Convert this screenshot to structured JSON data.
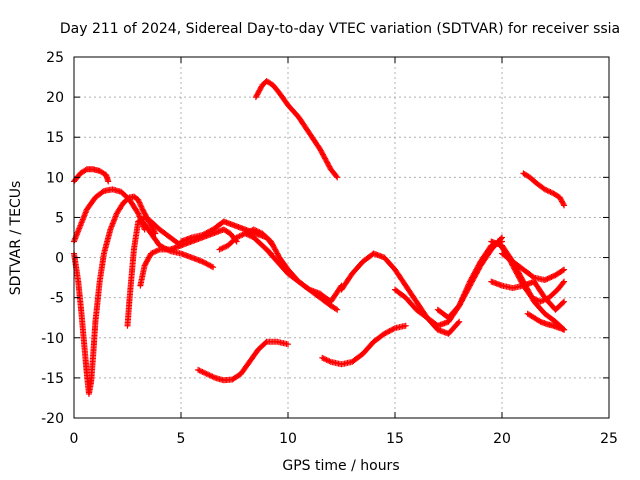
{
  "chart_data": {
    "type": "scatter",
    "title": "Day 211 of 2024, Sidereal Day-to-day VTEC variation (SDTVAR) for receiver ssia",
    "xlabel": "GPS time / hours",
    "ylabel": "SDTVAR / TECUs",
    "xlim": [
      0,
      25
    ],
    "ylim": [
      -20,
      25
    ],
    "xticks": [
      0,
      5,
      10,
      15,
      20,
      25
    ],
    "yticks": [
      -20,
      -15,
      -10,
      -5,
      0,
      5,
      10,
      15,
      20,
      25
    ],
    "grid": true,
    "marker": "+",
    "color": "#ff0000",
    "series": [
      {
        "name": "s1",
        "x": [
          0.0,
          0.3,
          0.6,
          0.9,
          1.2,
          1.5,
          1.6
        ],
        "y": [
          9.5,
          10.5,
          11.0,
          11.0,
          10.8,
          10.3,
          9.5
        ]
      },
      {
        "name": "s2",
        "x": [
          0.0,
          0.3,
          0.6,
          1.0,
          1.4,
          1.8,
          2.2,
          2.6,
          3.0,
          3.3
        ],
        "y": [
          2.0,
          4.0,
          6.0,
          7.5,
          8.3,
          8.5,
          8.2,
          7.2,
          5.5,
          3.5
        ]
      },
      {
        "name": "s3",
        "x": [
          0.0,
          0.2,
          0.35,
          0.5,
          0.6,
          0.7,
          0.8,
          0.9,
          1.0,
          1.2,
          1.4,
          1.7,
          2.0,
          2.3,
          2.6,
          2.8,
          3.0,
          3.2,
          3.5,
          3.8
        ],
        "y": [
          0.5,
          -3.0,
          -7.0,
          -11.5,
          -14.5,
          -17.0,
          -15.5,
          -12.0,
          -8.0,
          -3.0,
          0.5,
          3.5,
          5.5,
          6.8,
          7.5,
          7.6,
          7.2,
          6.0,
          4.5,
          3.0
        ]
      },
      {
        "name": "s4",
        "x": [
          2.5,
          2.6,
          2.8,
          3.0,
          3.3,
          3.6,
          4.0,
          4.5,
          5.0
        ],
        "y": [
          -8.5,
          -5.0,
          1.0,
          4.5,
          5.0,
          4.5,
          3.5,
          2.5,
          1.5
        ]
      },
      {
        "name": "s5",
        "x": [
          3.1,
          3.3,
          3.6,
          4.0,
          4.5,
          5.0,
          5.5,
          6.0,
          6.5,
          7.0,
          7.3,
          7.6
        ],
        "y": [
          -3.5,
          -1.0,
          0.5,
          1.0,
          1.0,
          1.5,
          2.0,
          2.5,
          3.0,
          3.5,
          3.0,
          2.0
        ]
      },
      {
        "name": "s6",
        "x": [
          3.2,
          3.6,
          4.0,
          4.5,
          5.0,
          5.5,
          6.0,
          6.5
        ],
        "y": [
          4.5,
          3.0,
          1.5,
          0.8,
          0.5,
          0.0,
          -0.5,
          -1.2
        ]
      },
      {
        "name": "s7",
        "x": [
          5.0,
          5.5,
          6.0,
          6.5,
          7.0,
          7.5,
          8.0,
          8.5,
          9.0,
          9.3
        ],
        "y": [
          2.0,
          2.5,
          2.8,
          3.5,
          4.5,
          4.0,
          3.5,
          3.0,
          2.5,
          1.5
        ]
      },
      {
        "name": "s8",
        "x": [
          6.8,
          7.2,
          7.6,
          8.0,
          8.4,
          8.8,
          9.2
        ],
        "y": [
          1.0,
          1.5,
          2.5,
          3.0,
          2.5,
          1.5,
          0.5
        ]
      },
      {
        "name": "s9",
        "x": [
          8.0,
          8.4,
          8.8,
          9.2,
          9.6,
          10.0,
          10.5,
          11.0,
          11.5,
          12.0,
          12.5
        ],
        "y": [
          3.0,
          3.5,
          3.0,
          2.0,
          0.0,
          -1.5,
          -3.0,
          -4.0,
          -4.5,
          -5.5,
          -3.5
        ]
      },
      {
        "name": "s10",
        "x": [
          9.0,
          9.5,
          10.0,
          10.5,
          11.0,
          11.5,
          12.0,
          12.3
        ],
        "y": [
          1.0,
          -0.5,
          -2.0,
          -3.0,
          -4.0,
          -5.0,
          -6.0,
          -6.5
        ]
      },
      {
        "name": "s11",
        "x": [
          8.5,
          8.8,
          9.0,
          9.3,
          9.6,
          10.0,
          10.5,
          11.0,
          11.5,
          12.0,
          12.3
        ],
        "y": [
          20.0,
          21.5,
          22.0,
          21.5,
          20.5,
          19.0,
          17.5,
          15.5,
          13.5,
          11.0,
          10.0
        ]
      },
      {
        "name": "s12",
        "x": [
          5.8,
          6.2,
          6.6,
          7.0,
          7.4,
          7.8,
          8.2,
          8.6,
          9.0,
          9.5,
          10.0
        ],
        "y": [
          -14.0,
          -14.5,
          -15.0,
          -15.3,
          -15.2,
          -14.5,
          -13.0,
          -11.5,
          -10.5,
          -10.5,
          -10.8
        ]
      },
      {
        "name": "s13",
        "x": [
          11.6,
          12.0,
          12.5,
          13.0,
          13.5,
          14.0,
          14.5,
          15.0,
          15.5
        ],
        "y": [
          -12.5,
          -13.0,
          -13.3,
          -13.0,
          -12.0,
          -10.5,
          -9.5,
          -8.8,
          -8.5
        ]
      },
      {
        "name": "s14",
        "x": [
          12.5,
          13.0,
          13.5,
          14.0,
          14.5,
          15.0,
          15.5,
          16.0,
          16.5,
          17.0,
          17.5,
          18.0
        ],
        "y": [
          -4.0,
          -2.0,
          -0.5,
          0.5,
          0.0,
          -1.5,
          -3.5,
          -5.5,
          -7.5,
          -9.0,
          -9.5,
          -8.0
        ]
      },
      {
        "name": "s15",
        "x": [
          15.0,
          15.5,
          16.0,
          16.5,
          17.0,
          17.5,
          18.0,
          18.5,
          19.0,
          19.5,
          20.0
        ],
        "y": [
          -4.0,
          -5.0,
          -6.5,
          -7.5,
          -8.5,
          -8.0,
          -6.0,
          -3.0,
          -0.5,
          1.5,
          2.0
        ]
      },
      {
        "name": "s16",
        "x": [
          17.0,
          17.5,
          18.0,
          18.5,
          19.0,
          19.5,
          20.0
        ],
        "y": [
          -6.5,
          -7.5,
          -6.0,
          -3.5,
          -1.0,
          1.0,
          2.5
        ]
      },
      {
        "name": "s17",
        "x": [
          19.5,
          20.0,
          20.5,
          21.0,
          21.5,
          22.0,
          22.5,
          22.9
        ],
        "y": [
          2.0,
          1.5,
          -0.5,
          -3.0,
          -5.5,
          -7.0,
          -8.0,
          -9.0
        ]
      },
      {
        "name": "s18",
        "x": [
          19.8,
          20.2,
          20.6,
          21.0,
          21.4,
          21.8,
          22.2,
          22.6,
          22.9
        ],
        "y": [
          2.0,
          0.5,
          -1.5,
          -3.5,
          -5.0,
          -5.5,
          -5.0,
          -4.0,
          -3.0
        ]
      },
      {
        "name": "s19",
        "x": [
          20.0,
          20.5,
          21.0,
          21.5,
          22.0,
          22.5,
          22.9
        ],
        "y": [
          0.5,
          -0.5,
          -1.5,
          -2.5,
          -2.8,
          -2.2,
          -1.5
        ]
      },
      {
        "name": "s20",
        "x": [
          19.5,
          20.0,
          20.5,
          21.0,
          21.5,
          22.0,
          22.5,
          22.9
        ],
        "y": [
          -3.0,
          -3.5,
          -3.8,
          -3.5,
          -3.0,
          -5.0,
          -6.5,
          -5.5
        ]
      },
      {
        "name": "s21",
        "x": [
          21.0,
          21.3,
          21.6,
          22.0,
          22.4,
          22.7,
          22.9
        ],
        "y": [
          10.5,
          10.0,
          9.3,
          8.5,
          8.0,
          7.5,
          6.5
        ]
      },
      {
        "name": "s22",
        "x": [
          21.2,
          21.5,
          21.8,
          22.1,
          22.4,
          22.7,
          22.9
        ],
        "y": [
          -7.0,
          -7.5,
          -8.0,
          -8.3,
          -8.5,
          -8.8,
          -9.0
        ]
      }
    ]
  }
}
